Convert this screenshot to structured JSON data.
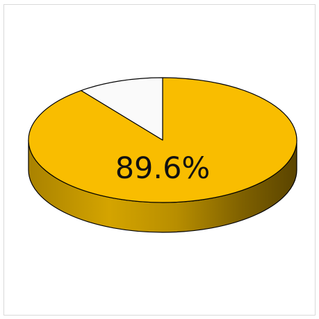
{
  "chart_data": {
    "type": "pie",
    "title": "",
    "slices": [
      {
        "value": 89.6,
        "color": "#f9bd00"
      },
      {
        "value": 10.4,
        "color": "#fafafa"
      }
    ],
    "data_label": "89.6%",
    "style": "3d-tilted",
    "legend": "none",
    "grid": false
  }
}
